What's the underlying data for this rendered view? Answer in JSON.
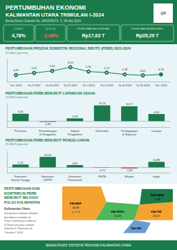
{
  "chart_data": [
    {
      "type": "line",
      "title": "PERTUMBUHAN PRODUK DOMESTIK REGIONAL BRUTO (PDRB) 2022-2024",
      "subtitle": "(Y-ON-Y) (persen)",
      "categories": [
        "Tw I 2022",
        "Tw II 2022",
        "Tw III 2022",
        "Tw IV 2022",
        "Tw I 2023",
        "Tw II 2023",
        "Tw III 2023",
        "Tw IV 2023",
        "Tw I 2024"
      ],
      "values": [
        4.67,
        5.05,
        5.41,
        6.09,
        5.3,
        5.12,
        4.78,
        4.61,
        4.78
      ],
      "value_labels": [
        "4,67",
        "5,05",
        "5,41",
        "6,09",
        "5,30",
        "5,12",
        "4,78",
        "4,61",
        "4,78"
      ],
      "data_labels": true,
      "color": "#1a7a4a",
      "marker": "circle",
      "ylim": [
        3.5,
        7.5
      ],
      "tick_labels": "x",
      "grid": false,
      "annotations": [
        "PERTUMBUHAN EKONOMI",
        "KALIMANTAN UTARA TRIWULAN I-2024",
        "Berita Resmi Statistik No. 28/05/65/Th. X, 06 Mei 2024",
        "QR",
        "Y-ON-Y",
        "4,78%",
        "Q-TO-Q",
        "-2,48%",
        "PDRB HARGA KONSTAN",
        "Rp17,63 T",
        "PDRB HARGA BERLAKU",
        "Rp35,29 T",
        "PERTUMBUHAN DAN\nKONTRIBUSI PDRB\nMENURUT WILAYAH\nPULAU KALIMANTAN",
        "Kalimantan Utara",
        "merupakan wilayah dengan\nkontribusi terendah di\nPulau Kalimantan sebesar\n4,78 persen dan tumbuh\nsebesar 4,78 persen di\nTriwulan I 2024",
        "KALBAR",
        "16,58",
        "▲ 4,98",
        "KALTENG",
        "12,08",
        "KALSEL",
        "KALTIM",
        "45,12",
        "KALTARA",
        "4,78",
        "BADAN PUSAT STATISTIK PROVINSI KALIMANTAN UTARA"
      ]
    },
    {
      "type": "bar",
      "title": "PERTUMBUHAN PDRB MENURUT LAPANGAN USAHA",
      "subtitle": "(Y-ON-Y) (persen)",
      "categories": [
        "Pertanian",
        "Pertambangan\n& Penggalian",
        "Industri\nPengolahan",
        "Konstruksi",
        "Perdagangan\n& Reparasi",
        "Lainnya"
      ],
      "values": [
        5.06,
        -0.49,
        1.93,
        10.76,
        10.17,
        4.9
      ],
      "value_labels": [
        "5,06",
        "-0,49",
        "1,93",
        "10,76",
        "10,17",
        "4,90"
      ],
      "colors": [
        "#1a7a4a",
        "#c0392b",
        "#1a7a4a",
        "#1a7a4a",
        "#1a7a4a",
        "#1a7a4a"
      ],
      "data_labels": true,
      "ylim": [
        -4,
        12
      ],
      "tick_labels": "x",
      "grid": false
    },
    {
      "type": "bar",
      "title": "PERTUMBUHAN PDRB MENURUT PENGELUARAN",
      "subtitle": "(Y-ON-Y) (persen)",
      "categories": [
        "Konsumsi\nRumah Tangga",
        "Konsumsi\nLKPRT",
        "Konsumsi\nPemerintah",
        "PMTB",
        "Ekspor",
        "Impor"
      ],
      "values": [
        5.76,
        20.24,
        4.63,
        -0.72,
        -1.83,
        10.88
      ],
      "value_labels": [
        "5,76",
        "20,24",
        "4,63",
        "-0,72",
        "-1,83",
        "10,88"
      ],
      "colors": [
        "#1a7a4a",
        "#1a7a4a",
        "#1a7a4a",
        "#c0392b",
        "#c0392b",
        "#1a7a4a"
      ],
      "data_labels": true,
      "ylim": [
        -10,
        30
      ],
      "tick_labels": "x",
      "grid": false
    }
  ]
}
